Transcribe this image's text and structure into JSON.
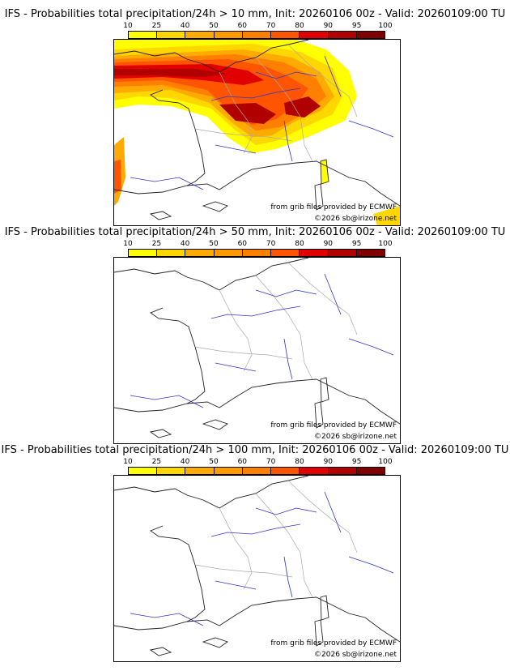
{
  "colorbar": {
    "labels": [
      "10",
      "25",
      "40",
      "50",
      "60",
      "70",
      "80",
      "90",
      "95",
      "100"
    ],
    "colors": [
      "#ffff00",
      "#ffd700",
      "#ffaa00",
      "#ff9900",
      "#ff7f00",
      "#ff5500",
      "#e00000",
      "#b00000",
      "#800000"
    ]
  },
  "panels": [
    {
      "title": "IFS - Probabilities total precipitation/24h > 10 mm, Init: 20260106 00z - Valid: 20260109:00 TU"
    },
    {
      "title": "IFS - Probabilities total precipitation/24h > 50 mm, Init: 20260106 00z - Valid: 20260109:00 TU"
    },
    {
      "title": "IFS - Probabilities total precipitation/24h > 100 mm, Init: 20260106 00z - Valid: 20260109:00 TU"
    }
  ],
  "credits": {
    "source": "from grib files provided by ECMWF",
    "copyright": "©2026 sb@irizone.net"
  },
  "colors": {
    "coast": "#222222",
    "rivers": "#3333cc",
    "borders": "#aaaaaa"
  }
}
